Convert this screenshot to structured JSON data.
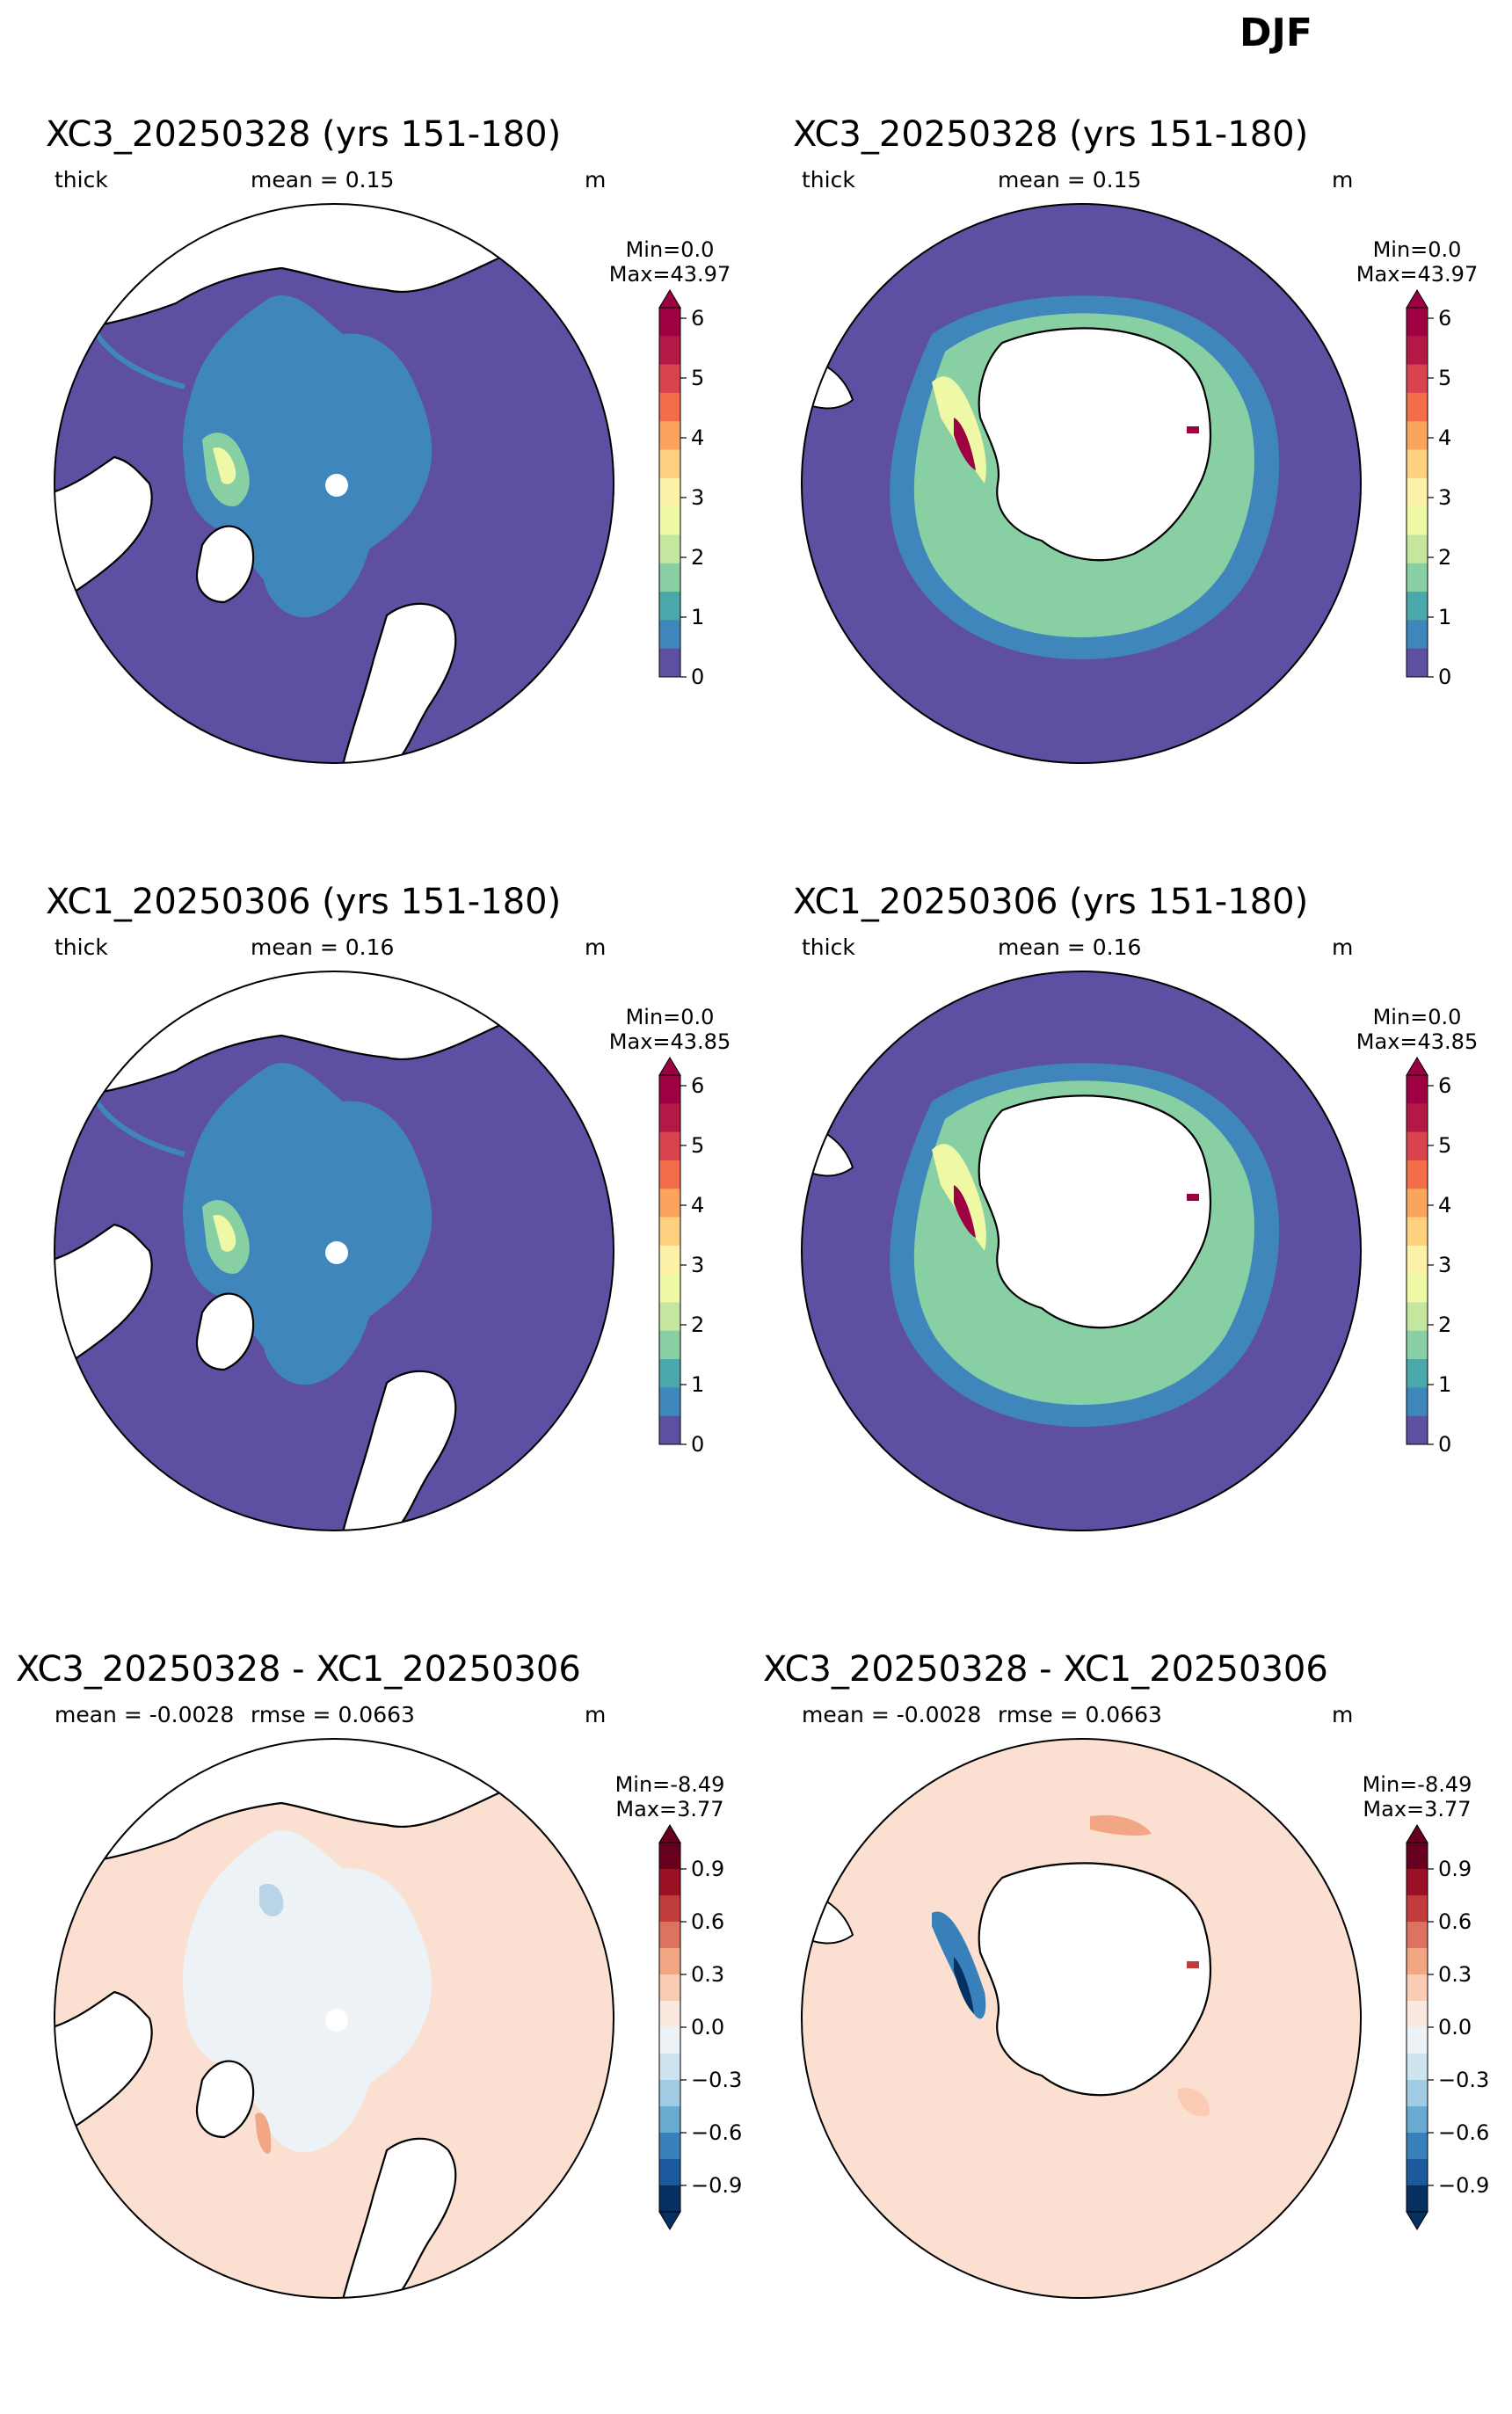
{
  "figure": {
    "title": "DJF"
  },
  "panels": [
    {
      "id": "r1c1",
      "hemisphere": "north",
      "kind": "thick",
      "title": "XC3_20250328 (yrs 151-180)",
      "var": "thick",
      "stat": "mean = 0.15",
      "units": "m",
      "minmax": [
        "Min=0.0",
        "Max=43.97"
      ]
    },
    {
      "id": "r1c2",
      "hemisphere": "south",
      "kind": "thick",
      "title": "XC3_20250328 (yrs 151-180)",
      "var": "thick",
      "stat": "mean = 0.15",
      "units": "m",
      "minmax": [
        "Min=0.0",
        "Max=43.97"
      ]
    },
    {
      "id": "r2c1",
      "hemisphere": "north",
      "kind": "thick",
      "title": "XC1_20250306 (yrs 151-180)",
      "var": "thick",
      "stat": "mean = 0.16",
      "units": "m",
      "minmax": [
        "Min=0.0",
        "Max=43.85"
      ]
    },
    {
      "id": "r2c2",
      "hemisphere": "south",
      "kind": "thick",
      "title": "XC1_20250306 (yrs 151-180)",
      "var": "thick",
      "stat": "mean = 0.16",
      "units": "m",
      "minmax": [
        "Min=0.0",
        "Max=43.85"
      ]
    },
    {
      "id": "r3c1",
      "hemisphere": "north",
      "kind": "diff",
      "title": "XC3_20250328 - XC1_20250306",
      "var": "mean = -0.0028",
      "stat": "rmse = 0.0663",
      "units": "m",
      "minmax": [
        "Min=-8.49",
        "Max=3.77"
      ]
    },
    {
      "id": "r3c2",
      "hemisphere": "south",
      "kind": "diff",
      "title": "XC3_20250328 - XC1_20250306",
      "var": "mean = -0.0028",
      "stat": "rmse = 0.0663",
      "units": "m",
      "minmax": [
        "Min=-8.49",
        "Max=3.77"
      ]
    }
  ],
  "colorbars": {
    "thick": {
      "ticks": [
        "0",
        "1",
        "2",
        "3",
        "4",
        "5",
        "6"
      ],
      "colors": [
        "#5e4fa2",
        "#3f86bc",
        "#4aa8aa",
        "#88cfa4",
        "#c4e69e",
        "#eef8a5",
        "#fdf2a8",
        "#fdd17f",
        "#faa45e",
        "#f36d4a",
        "#d8434e",
        "#b41846",
        "#9e0142"
      ],
      "extend": "max"
    },
    "diff": {
      "ticks": [
        "0.9",
        "0.6",
        "0.3",
        "0.0",
        "−0.3",
        "−0.6",
        "−0.9"
      ],
      "colors": [
        "#053061",
        "#1b5a9c",
        "#3780b9",
        "#6aa9d0",
        "#a0cbe2",
        "#cde3ee",
        "#ecf2f5",
        "#fbe9df",
        "#fbccb4",
        "#f3a683",
        "#de7260",
        "#c13c3c",
        "#9a1126",
        "#67001f"
      ],
      "extend": "both"
    }
  },
  "map_colors": {
    "land": "#ffffff",
    "open_ocean": "#5e4fa2",
    "diff_background": "#fbe0d1",
    "coast": "#000000"
  }
}
